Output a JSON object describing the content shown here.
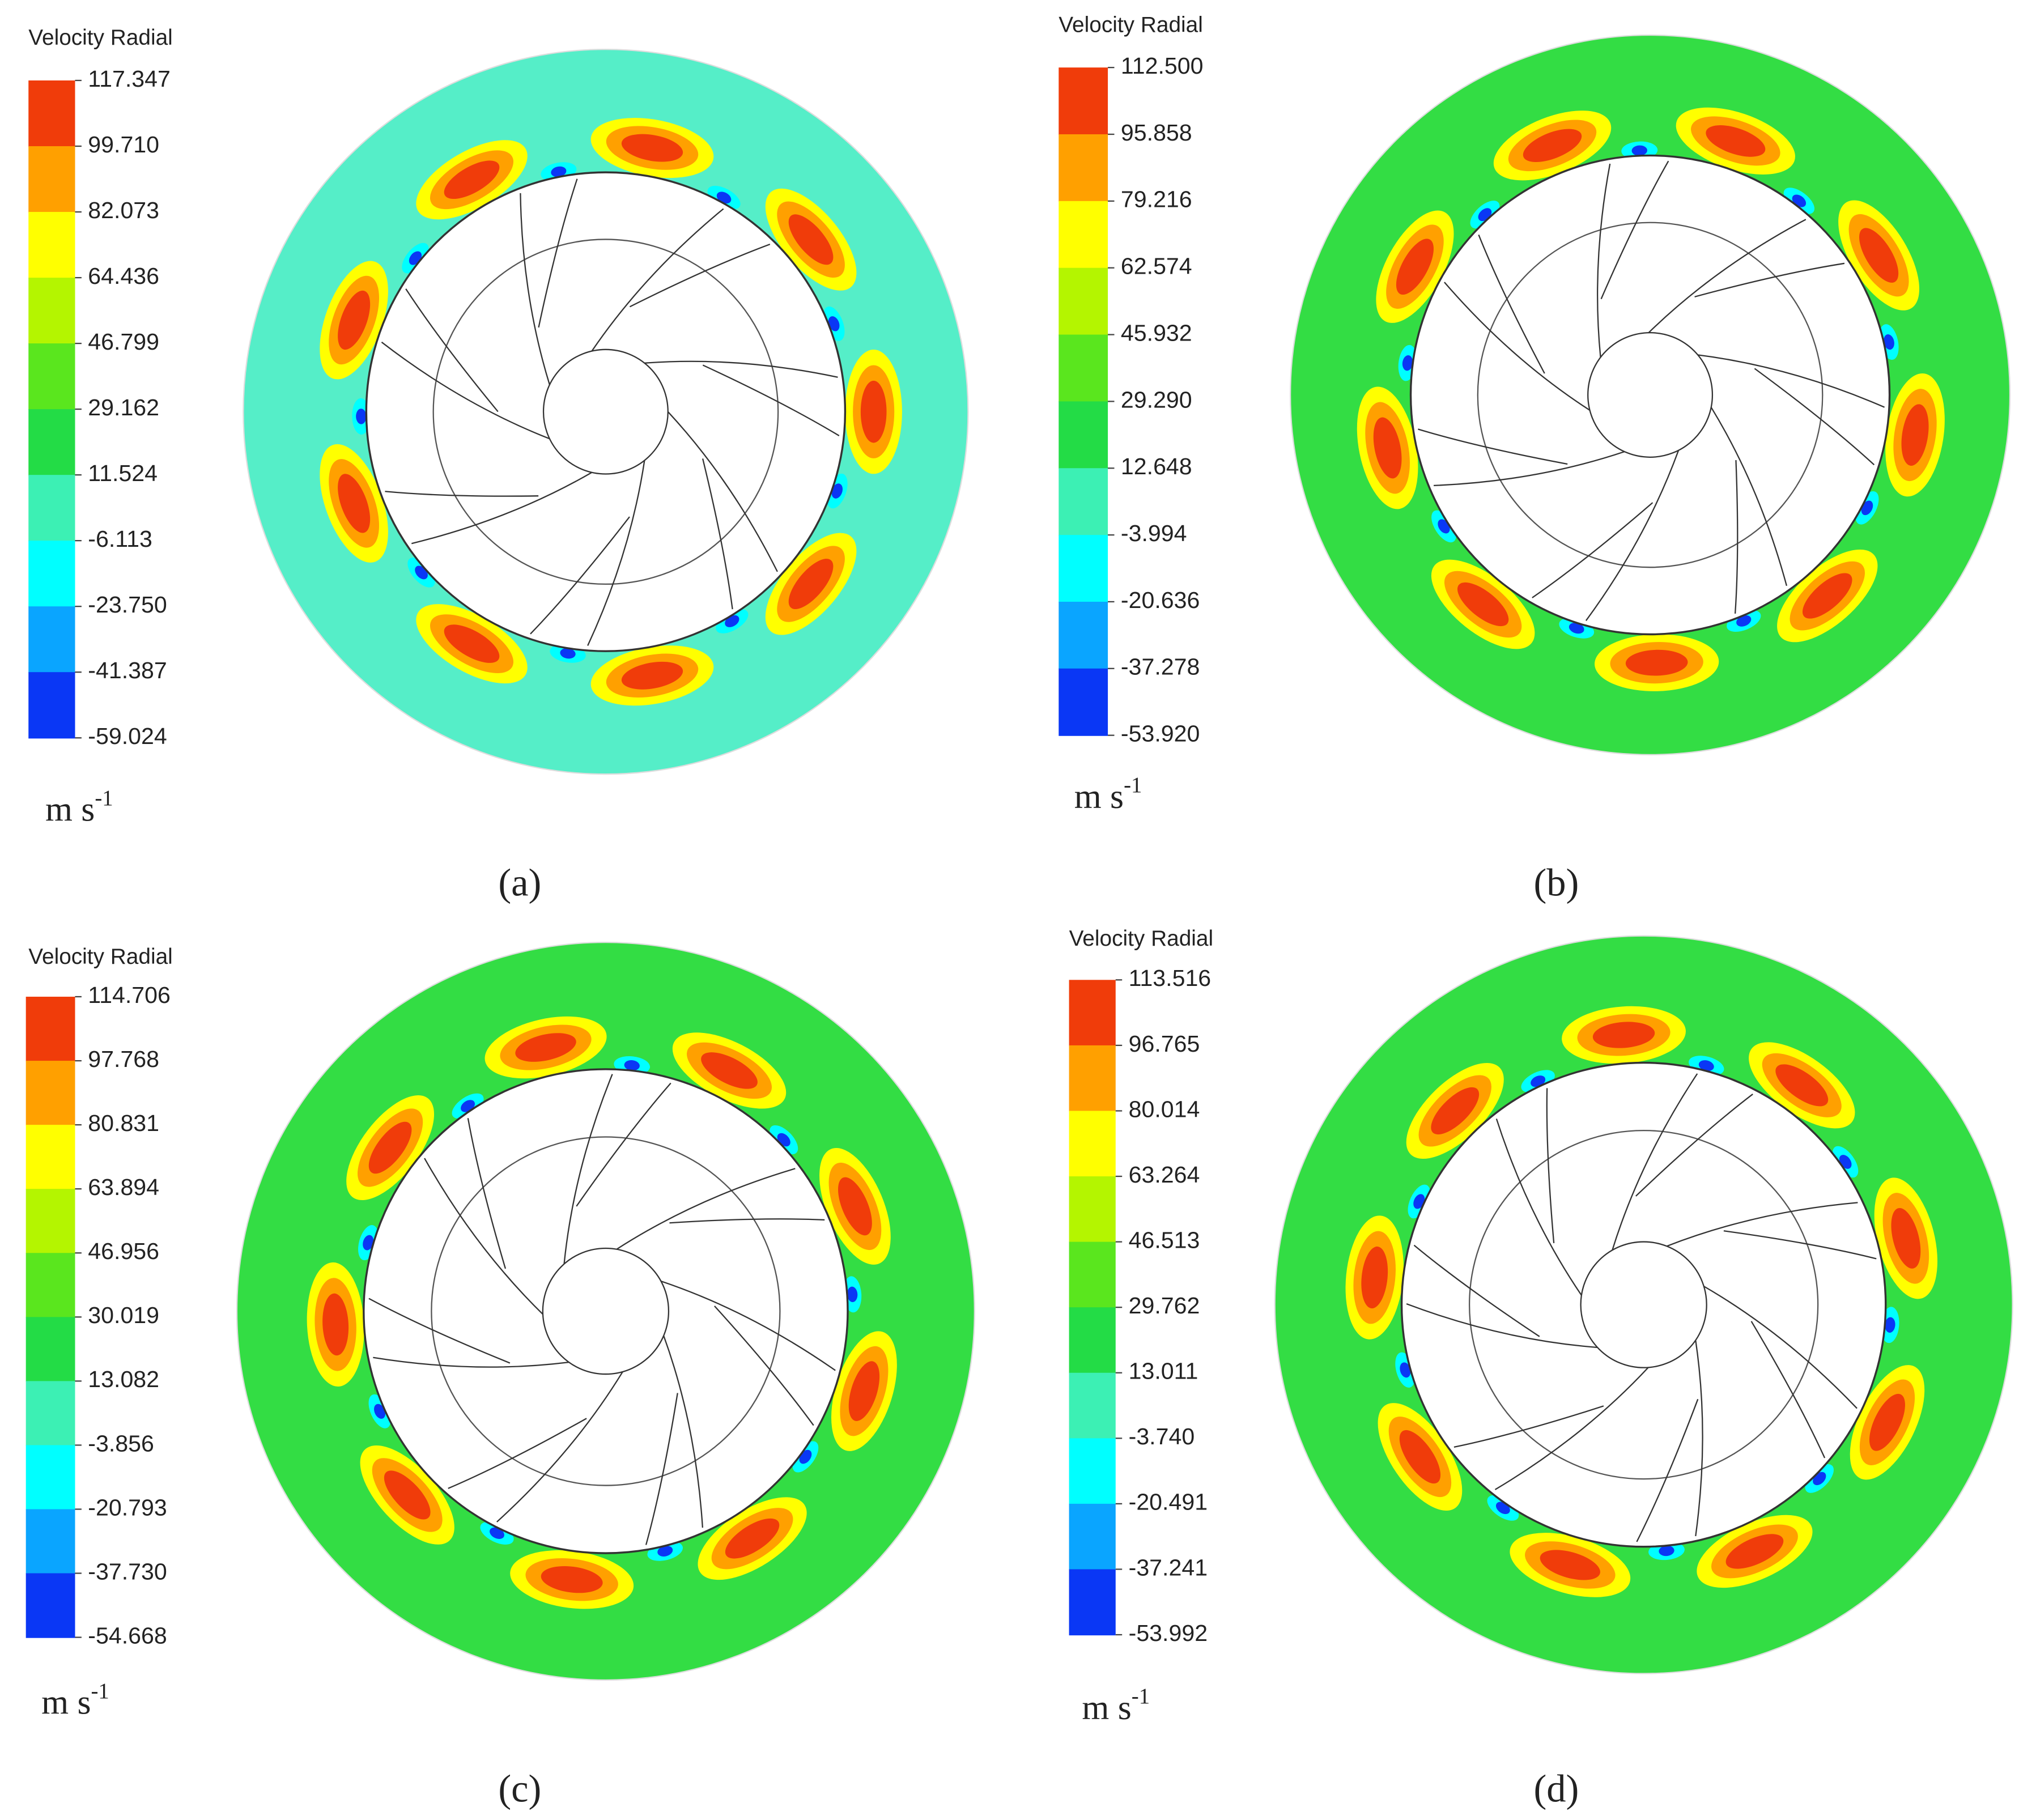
{
  "panels": [
    {
      "title": "Velocity Radial",
      "ticks": [
        "117.347",
        "99.710",
        "82.073",
        "64.436",
        "46.799",
        "29.162",
        "11.524",
        "-6.113",
        "-23.750",
        "-41.387",
        "-59.024"
      ],
      "unit": "m s",
      "unit_sup": "-1",
      "caption": "(a)"
    },
    {
      "title": "Velocity Radial",
      "ticks": [
        "112.500",
        "95.858",
        "79.216",
        "62.574",
        "45.932",
        "29.290",
        "12.648",
        "-3.994",
        "-20.636",
        "-37.278",
        "-53.920"
      ],
      "unit": "m s",
      "unit_sup": "-1",
      "caption": "(b)"
    },
    {
      "title": "Velocity Radial",
      "ticks": [
        "114.706",
        "97.768",
        "80.831",
        "63.894",
        "46.956",
        "30.019",
        "13.082",
        "-3.856",
        "-20.793",
        "-37.730",
        "-54.668"
      ],
      "unit": "m s",
      "unit_sup": "-1",
      "caption": "(c)"
    },
    {
      "title": "Velocity Radial",
      "ticks": [
        "113.516",
        "96.765",
        "80.014",
        "63.264",
        "46.513",
        "29.762",
        "13.011",
        "-3.740",
        "-20.491",
        "-37.241",
        "-53.992"
      ],
      "unit": "m s",
      "unit_sup": "-1",
      "caption": "(d)"
    }
  ]
}
